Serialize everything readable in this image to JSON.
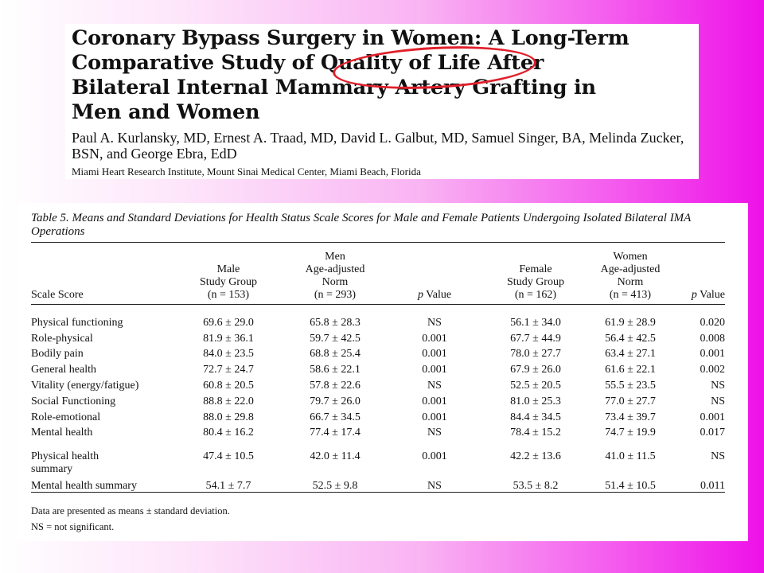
{
  "paper": {
    "title": "Coronary Bypass Surgery in Women: A Long-Term\nComparative Study of Quality of Life After\nBilateral Internal Mammary Artery Grafting in\nMen and Women",
    "authors": "Paul A. Kurlansky, MD, Ernest A. Traad, MD, David L. Galbut, MD, Samuel Singer, BA, Melinda Zucker, BSN, and George Ebra, EdD",
    "affiliation": "Miami Heart Research Institute, Mount Sinai Medical Center, Miami Beach, Florida",
    "highlight_color": "#e0202c"
  },
  "table": {
    "caption": "Table 5. Means and Standard Deviations for Health Status Scale Scores for Male and Female Patients Undergoing Isolated Bilateral IMA Operations",
    "headers": [
      "Scale Score",
      "Male\nStudy Group\n(n = 153)",
      "Men\nAge-adjusted\nNorm\n(n = 293)",
      "p Value",
      "Female\nStudy Group\n(n = 162)",
      "Women\nAge-adjusted\nNorm\n(n = 413)",
      "p Value"
    ],
    "rows": [
      [
        "Physical functioning",
        "69.6 ± 29.0",
        "65.8 ± 28.3",
        "NS",
        "56.1 ± 34.0",
        "61.9 ± 28.9",
        "0.020"
      ],
      [
        "Role-physical",
        "81.9 ± 36.1",
        "59.7 ± 42.5",
        "0.001",
        "67.7 ± 44.9",
        "56.4 ± 42.5",
        "0.008"
      ],
      [
        "Bodily pain",
        "84.0 ± 23.5",
        "68.8 ± 25.4",
        "0.001",
        "78.0 ± 27.7",
        "63.4 ± 27.1",
        "0.001"
      ],
      [
        "General health",
        "72.7 ± 24.7",
        "58.6 ± 22.1",
        "0.001",
        "67.9 ± 26.0",
        "61.6 ± 22.1",
        "0.002"
      ],
      [
        "Vitality (energy/fatigue)",
        "60.8 ± 20.5",
        "57.8 ± 22.6",
        "NS",
        "52.5 ± 20.5",
        "55.5 ± 23.5",
        "NS"
      ],
      [
        "Social Functioning",
        "88.8 ± 22.0",
        "79.7 ± 26.0",
        "0.001",
        "81.0 ± 25.3",
        "77.0 ± 27.7",
        "NS"
      ],
      [
        "Role-emotional",
        "88.0 ± 29.8",
        "66.7 ± 34.5",
        "0.001",
        "84.4 ± 34.5",
        "73.4 ± 39.7",
        "0.001"
      ],
      [
        "Mental health",
        "80.4 ± 16.2",
        "77.4 ± 17.4",
        "NS",
        "78.4 ± 15.2",
        "74.7 ± 19.9",
        "0.017"
      ]
    ],
    "summary_rows": [
      [
        "Physical health\n   summary",
        "47.4 ± 10.5",
        "42.0 ± 11.4",
        "0.001",
        "42.2 ± 13.6",
        "41.0 ± 11.5",
        "NS"
      ],
      [
        "Mental health summary",
        "54.1 ± 7.7",
        "52.5 ± 9.8",
        "NS",
        "53.5 ± 8.2",
        "51.4 ± 10.5",
        "0.011"
      ]
    ],
    "footnotes": [
      "Data are presented as means ± standard deviation.",
      "NS = not significant."
    ]
  }
}
